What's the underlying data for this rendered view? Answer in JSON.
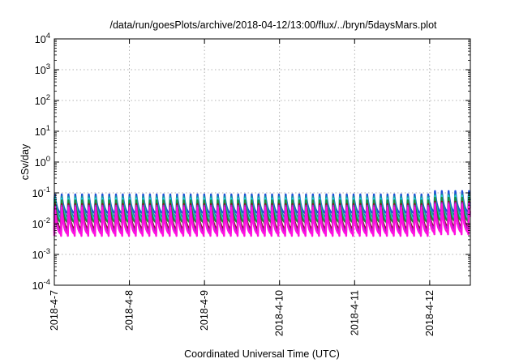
{
  "chart_data": {
    "type": "line",
    "title": "/data/run/goesPlots/archive/2018-04-12/13:00/flux/../bryn/5daysMars.plot",
    "xlabel": "Coordinated Universal Time (UTC)",
    "ylabel": "cSv/day",
    "yscale": "log",
    "ylim": [
      0.0001,
      10000
    ],
    "xlim": [
      "2018-04-07T00:00",
      "2018-04-12T13:00"
    ],
    "grid": true,
    "y_ticks": [
      {
        "value": 0.0001,
        "base": "10",
        "exp": "-4"
      },
      {
        "value": 0.001,
        "base": "10",
        "exp": "-3"
      },
      {
        "value": 0.01,
        "base": "10",
        "exp": "-2"
      },
      {
        "value": 0.1,
        "base": "10",
        "exp": "-1"
      },
      {
        "value": 1,
        "base": "10",
        "exp": "0"
      },
      {
        "value": 10,
        "base": "10",
        "exp": "1"
      },
      {
        "value": 100,
        "base": "10",
        "exp": "2"
      },
      {
        "value": 1000,
        "base": "10",
        "exp": "3"
      },
      {
        "value": 10000,
        "base": "10",
        "exp": "4"
      }
    ],
    "x_ticks": [
      {
        "value": "2018-04-07T00:00",
        "label": "2018-4-7"
      },
      {
        "value": "2018-04-08T00:00",
        "label": "2018-4-8"
      },
      {
        "value": "2018-04-09T00:00",
        "label": "2018-4-9"
      },
      {
        "value": "2018-04-10T00:00",
        "label": "2018-4-10"
      },
      {
        "value": "2018-04-11T00:00",
        "label": "2018-4-11"
      },
      {
        "value": "2018-04-12T00:00",
        "label": "2018-4-12"
      }
    ],
    "cycle_hours": 2.17,
    "series": [
      {
        "color": "#1e50d8",
        "peak": [
          0.1,
          0.1,
          0.1,
          0.1,
          0.1,
          0.13
        ],
        "trough": [
          0.02,
          0.02,
          0.02,
          0.02,
          0.02,
          0.022
        ]
      },
      {
        "color": "#1a8aa0",
        "peak": [
          0.085,
          0.085,
          0.085,
          0.085,
          0.085,
          0.1
        ],
        "trough": [
          0.015,
          0.015,
          0.015,
          0.015,
          0.015,
          0.017
        ]
      },
      {
        "color": "#22d0d0",
        "peak": [
          0.075,
          0.075,
          0.075,
          0.075,
          0.075,
          0.09
        ],
        "trough": [
          0.012,
          0.012,
          0.012,
          0.012,
          0.012,
          0.013
        ]
      },
      {
        "color": "#1e8c3c",
        "peak": [
          0.065,
          0.065,
          0.065,
          0.065,
          0.065,
          0.08
        ],
        "trough": [
          0.01,
          0.01,
          0.01,
          0.01,
          0.01,
          0.011
        ]
      },
      {
        "color": "#8a1414",
        "peak": [
          0.05,
          0.05,
          0.05,
          0.05,
          0.05,
          0.06
        ],
        "trough": [
          0.006,
          0.006,
          0.006,
          0.006,
          0.006,
          0.007
        ]
      },
      {
        "color": "#a020c0",
        "peak": [
          0.045,
          0.045,
          0.045,
          0.045,
          0.045,
          0.055
        ],
        "trough": [
          0.005,
          0.005,
          0.005,
          0.005,
          0.005,
          0.006
        ]
      },
      {
        "color": "#ff10e0",
        "peak": [
          0.04,
          0.04,
          0.04,
          0.04,
          0.04,
          0.05
        ],
        "trough": [
          0.004,
          0.004,
          0.004,
          0.004,
          0.004,
          0.0045
        ]
      }
    ]
  }
}
